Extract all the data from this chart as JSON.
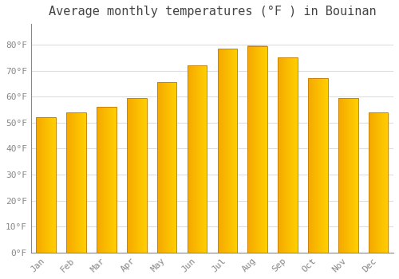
{
  "title": "Average monthly temperatures (°F ) in Bouinan",
  "months": [
    "Jan",
    "Feb",
    "Mar",
    "Apr",
    "May",
    "Jun",
    "Jul",
    "Aug",
    "Sep",
    "Oct",
    "Nov",
    "Dec"
  ],
  "values": [
    52,
    54,
    56,
    59.5,
    65.5,
    72,
    78.5,
    79.5,
    75,
    67,
    59.5,
    54
  ],
  "bar_color_left": "#F5A800",
  "bar_color_right": "#FFD000",
  "bar_edge_color": "#C8830A",
  "background_color": "#FFFFFF",
  "grid_color": "#DDDDDD",
  "ylim": [
    0,
    88
  ],
  "yticks": [
    0,
    10,
    20,
    30,
    40,
    50,
    60,
    70,
    80
  ],
  "ytick_labels": [
    "0°F",
    "10°F",
    "20°F",
    "30°F",
    "40°F",
    "50°F",
    "60°F",
    "70°F",
    "80°F"
  ],
  "title_fontsize": 11,
  "tick_fontsize": 8,
  "tick_color": "#888888",
  "title_color": "#444444"
}
